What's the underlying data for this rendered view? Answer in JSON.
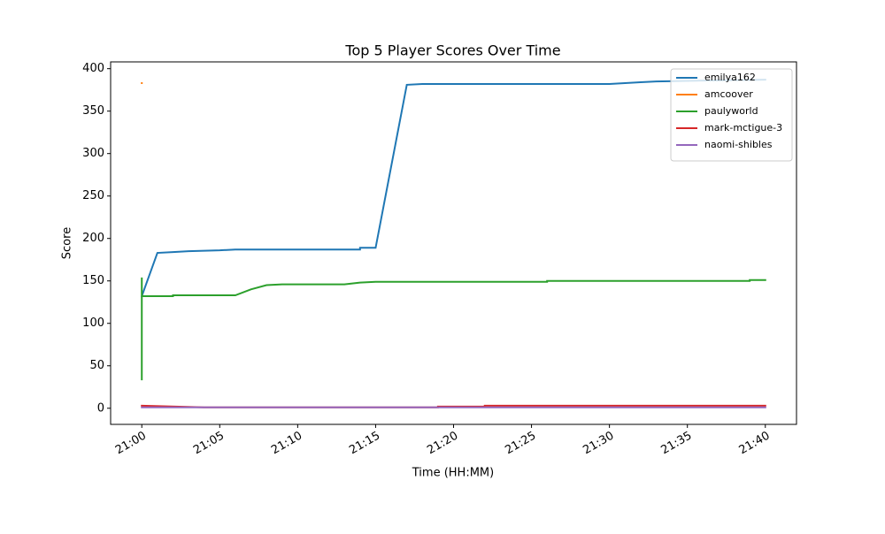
{
  "chart_data": {
    "type": "line",
    "title": "Top 5 Player Scores Over Time",
    "xlabel": "Time (HH:MM)",
    "ylabel": "Score",
    "xlim": [
      "20:58",
      "21:42"
    ],
    "ylim": [
      -19,
      408
    ],
    "xticks": [
      "21:00",
      "21:05",
      "21:10",
      "21:15",
      "21:20",
      "21:25",
      "21:30",
      "21:35",
      "21:40"
    ],
    "yticks": [
      0,
      50,
      100,
      150,
      200,
      250,
      300,
      350,
      400
    ],
    "legend": "upper right",
    "grid": false,
    "series": [
      {
        "name": "emilya162",
        "color": "#1f77b4",
        "x": [
          "21:00",
          "21:01",
          "21:02",
          "21:03",
          "21:05",
          "21:06",
          "21:14",
          "21:14",
          "21:15",
          "21:17",
          "21:18",
          "21:30",
          "21:31",
          "21:32",
          "21:33",
          "21:36",
          "21:40"
        ],
        "values": [
          132,
          183,
          184,
          185,
          186,
          187,
          187,
          189,
          189,
          381,
          382,
          382,
          383,
          384,
          385,
          386,
          387
        ]
      },
      {
        "name": "amcoover",
        "color": "#ff7f0e",
        "x": [
          "21:00",
          "21:00"
        ],
        "values": [
          383,
          383
        ]
      },
      {
        "name": "paulyworld",
        "color": "#2ca02c",
        "x": [
          "21:00",
          "21:00",
          "21:00",
          "21:02",
          "21:02",
          "21:06",
          "21:07",
          "21:08",
          "21:09",
          "21:13",
          "21:14",
          "21:15",
          "21:26",
          "21:26",
          "21:39",
          "21:39",
          "21:40"
        ],
        "values": [
          153,
          33,
          132,
          132,
          133,
          133,
          140,
          145,
          146,
          146,
          148,
          149,
          149,
          150,
          150,
          151,
          151
        ]
      },
      {
        "name": "mark-mctigue-3",
        "color": "#d62728",
        "x": [
          "21:00",
          "21:04",
          "21:19",
          "21:19",
          "21:22",
          "21:22",
          "21:40"
        ],
        "values": [
          3,
          1,
          1,
          2,
          2,
          3,
          3
        ]
      },
      {
        "name": "naomi-shibles",
        "color": "#9467bd",
        "x": [
          "21:00",
          "21:40"
        ],
        "values": [
          1,
          1
        ]
      }
    ]
  }
}
